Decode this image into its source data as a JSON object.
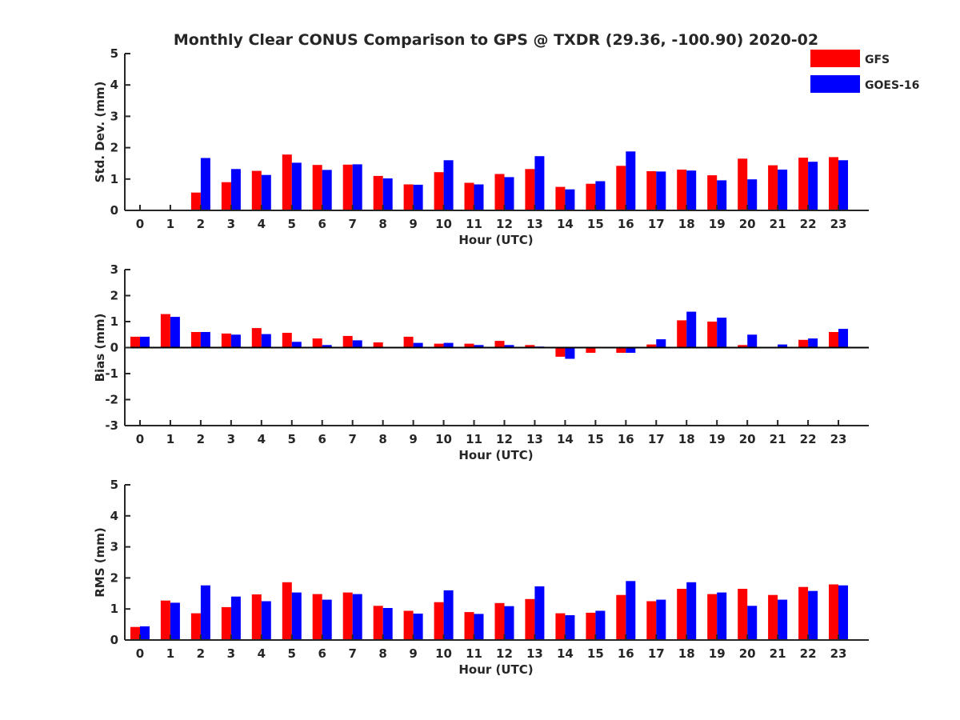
{
  "title": "Monthly Clear CONUS Comparison to GPS @ TXDR (29.36, -100.90) 2020-02",
  "legend": [
    {
      "name": "GFS",
      "color": "#ff0000"
    },
    {
      "name": "GOES-16",
      "color": "#0000ff"
    }
  ],
  "chart_data": [
    {
      "type": "bar",
      "title": "Monthly Clear CONUS Comparison to GPS @ TXDR (29.36, -100.90) 2020-02",
      "xlabel": "Hour (UTC)",
      "ylabel": "Std. Dev. (mm)",
      "ylim": [
        0,
        5
      ],
      "yticks": [
        0,
        1,
        2,
        3,
        4,
        5
      ],
      "categories": [
        "0",
        "1",
        "2",
        "3",
        "4",
        "5",
        "6",
        "7",
        "8",
        "9",
        "10",
        "11",
        "12",
        "13",
        "14",
        "15",
        "16",
        "17",
        "18",
        "19",
        "20",
        "21",
        "22",
        "23"
      ],
      "series": [
        {
          "name": "GFS",
          "color": "#ff0000",
          "values": [
            0.0,
            0.0,
            0.57,
            0.9,
            1.26,
            1.78,
            1.45,
            1.46,
            1.1,
            0.83,
            1.22,
            0.88,
            1.16,
            1.32,
            0.75,
            0.85,
            1.42,
            1.25,
            1.3,
            1.12,
            1.65,
            1.44,
            1.68,
            1.7
          ]
        },
        {
          "name": "GOES-16",
          "color": "#0000ff",
          "values": [
            0.0,
            0.0,
            1.67,
            1.32,
            1.13,
            1.52,
            1.29,
            1.47,
            1.02,
            0.82,
            1.6,
            0.83,
            1.06,
            1.73,
            0.67,
            0.93,
            1.88,
            1.24,
            1.27,
            0.96,
            0.99,
            1.3,
            1.55,
            1.6
          ]
        }
      ]
    },
    {
      "type": "bar",
      "xlabel": "Hour (UTC)",
      "ylabel": "Bias (mm)",
      "ylim": [
        -3,
        3
      ],
      "yticks": [
        -3,
        -2,
        -1,
        0,
        1,
        2,
        3
      ],
      "categories": [
        "0",
        "1",
        "2",
        "3",
        "4",
        "5",
        "6",
        "7",
        "8",
        "9",
        "10",
        "11",
        "12",
        "13",
        "14",
        "15",
        "16",
        "17",
        "18",
        "19",
        "20",
        "21",
        "22",
        "23"
      ],
      "series": [
        {
          "name": "GFS",
          "color": "#ff0000",
          "values": [
            0.42,
            1.29,
            0.6,
            0.54,
            0.75,
            0.57,
            0.35,
            0.45,
            0.2,
            0.42,
            0.15,
            0.15,
            0.26,
            0.1,
            -0.35,
            -0.2,
            -0.2,
            0.12,
            1.05,
            1.0,
            0.1,
            0.03,
            0.3,
            0.6
          ]
        },
        {
          "name": "GOES-16",
          "color": "#0000ff",
          "values": [
            0.42,
            1.18,
            0.6,
            0.5,
            0.52,
            0.22,
            0.1,
            0.28,
            0.0,
            0.18,
            0.18,
            0.1,
            0.1,
            0.04,
            -0.43,
            0.0,
            -0.2,
            0.32,
            1.38,
            1.15,
            0.5,
            0.12,
            0.35,
            0.72
          ]
        }
      ]
    },
    {
      "type": "bar",
      "xlabel": "Hour (UTC)",
      "ylabel": "RMS (mm)",
      "ylim": [
        0,
        5
      ],
      "yticks": [
        0,
        1,
        2,
        3,
        4,
        5
      ],
      "categories": [
        "0",
        "1",
        "2",
        "3",
        "4",
        "5",
        "6",
        "7",
        "8",
        "9",
        "10",
        "11",
        "12",
        "13",
        "14",
        "15",
        "16",
        "17",
        "18",
        "19",
        "20",
        "21",
        "22",
        "23"
      ],
      "series": [
        {
          "name": "GFS",
          "color": "#ff0000",
          "values": [
            0.42,
            1.27,
            0.86,
            1.06,
            1.47,
            1.86,
            1.48,
            1.53,
            1.1,
            0.94,
            1.22,
            0.9,
            1.19,
            1.32,
            0.86,
            0.88,
            1.45,
            1.25,
            1.65,
            1.48,
            1.65,
            1.45,
            1.71,
            1.79
          ]
        },
        {
          "name": "GOES-16",
          "color": "#0000ff",
          "values": [
            0.44,
            1.2,
            1.76,
            1.4,
            1.25,
            1.53,
            1.3,
            1.48,
            1.03,
            0.85,
            1.6,
            0.84,
            1.09,
            1.73,
            0.8,
            0.94,
            1.9,
            1.3,
            1.86,
            1.53,
            1.1,
            1.3,
            1.58,
            1.76
          ]
        }
      ]
    }
  ]
}
